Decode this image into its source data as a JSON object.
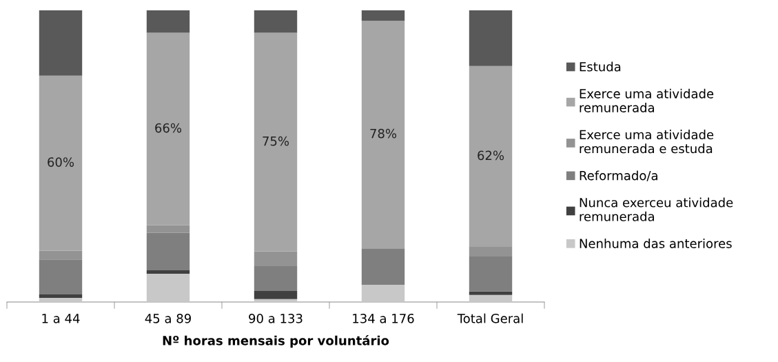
{
  "chart_data": {
    "type": "bar",
    "stacked": true,
    "xlabel": "Nº horas mensais por voluntário",
    "categories": [
      "1 a 44",
      "45 a 89",
      "90 a 133",
      "134 a 176",
      "Total Geral"
    ],
    "ylim": [
      0,
      100
    ],
    "tick_labels": "x",
    "grid": false,
    "legend": "right",
    "series": [
      {
        "name": "Nenhuma das anteriores",
        "color": "#c8c8c8",
        "values": [
          1.4,
          9.7,
          1,
          5.9,
          2.4
        ]
      },
      {
        "name": "Nunca exerceu atividade\nremunerada",
        "color": "#404040",
        "values": [
          1.2,
          1.2,
          2.8,
          0,
          1.2
        ]
      },
      {
        "name": "Reformado/a",
        "color": "#7f7f7f",
        "values": [
          12,
          12.8,
          8.5,
          12.5,
          12
        ]
      },
      {
        "name": "Exerce uma atividade\nremunerada e estuda",
        "color": "#939393",
        "values": [
          3,
          2.6,
          5,
          0,
          3.3
        ]
      },
      {
        "name": "Exerce uma atividade\nremunerada",
        "color": "#a6a6a6",
        "values": [
          60,
          66,
          75,
          78,
          62
        ],
        "value_labels": [
          "60%",
          "66%",
          "75%",
          "78%",
          "62%"
        ]
      },
      {
        "name": "Estuda",
        "color": "#595959",
        "values": [
          22.4,
          7.7,
          7.7,
          3.6,
          19.1
        ]
      }
    ]
  }
}
